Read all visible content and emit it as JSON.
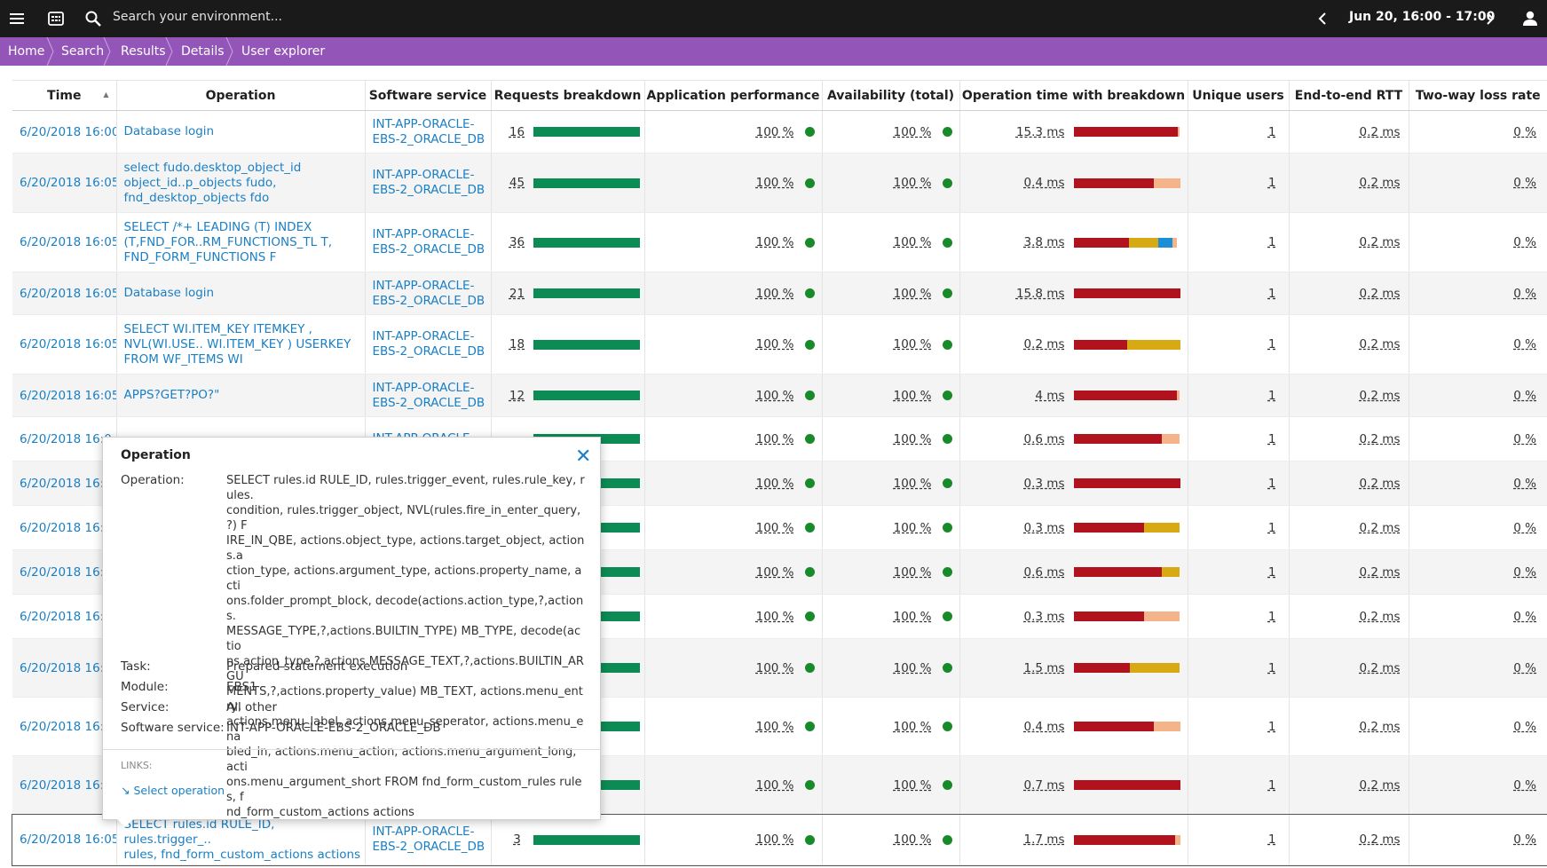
{
  "topbar": {
    "search_placeholder": "Search your environment...",
    "timeframe": "Jun 20, 16:00 - 17:00",
    "icons": [
      "menu-icon",
      "dashboard-icon",
      "search-icon",
      "chevron-left-icon",
      "chevron-right-icon",
      "user-icon"
    ]
  },
  "breadcrumbs": [
    "Home",
    "Search",
    "Results",
    "Details",
    "User explorer"
  ],
  "table": {
    "headers": {
      "time": "Time",
      "operation": "Operation",
      "software": "Software service",
      "requests": "Requests breakdown",
      "app_perf": "Application performance",
      "availability": "Availability (total)",
      "optime": "Operation time with breakdown",
      "users": "Unique users",
      "rtt": "End-to-end RTT",
      "loss": "Two-way loss rate"
    },
    "rows": [
      {
        "time": "6/20/2018 16:00",
        "op": [
          "Database login"
        ],
        "sw": [
          "INT-APP-ORACLE-",
          "EBS-2_ORACLE_DB"
        ],
        "req": "16",
        "perf": "100 %",
        "avail": "100 %",
        "optime": "15.3 ms",
        "breakdown": [
          {
            "color": "#b0131e",
            "frac": 0.98
          },
          {
            "color": "#f5b38a",
            "frac": 0.02
          }
        ],
        "users": "1",
        "rtt": "0.2 ms",
        "loss": "0 %"
      },
      {
        "time": "6/20/2018 16:05",
        "op": [
          "select fudo.desktop_object_id",
          "object_id..p_objects fudo,",
          "fnd_desktop_objects fdo"
        ],
        "sw": [
          "INT-APP-ORACLE-",
          "EBS-2_ORACLE_DB"
        ],
        "req": "45",
        "perf": "100 %",
        "avail": "100 %",
        "optime": "0.4 ms",
        "breakdown": [
          {
            "color": "#b0131e",
            "frac": 0.75
          },
          {
            "color": "#f5b38a",
            "frac": 0.25
          }
        ],
        "users": "1",
        "rtt": "0.2 ms",
        "loss": "0 %"
      },
      {
        "time": "6/20/2018 16:05",
        "op": [
          "SELECT /*+ LEADING (T) INDEX",
          "(T,FND_FOR..RM_FUNCTIONS_TL T,",
          "FND_FORM_FUNCTIONS F"
        ],
        "sw": [
          "INT-APP-ORACLE-",
          "EBS-2_ORACLE_DB"
        ],
        "req": "36",
        "perf": "100 %",
        "avail": "100 %",
        "optime": "3.8 ms",
        "breakdown": [
          {
            "color": "#b0131e",
            "frac": 0.52
          },
          {
            "color": "#d7a912",
            "frac": 0.28
          },
          {
            "color": "#1a8fd8",
            "frac": 0.13
          },
          {
            "color": "#f5b38a",
            "frac": 0.04
          }
        ],
        "users": "1",
        "rtt": "0.2 ms",
        "loss": "0 %"
      },
      {
        "time": "6/20/2018 16:05",
        "op": [
          "Database login"
        ],
        "sw": [
          "INT-APP-ORACLE-",
          "EBS-2_ORACLE_DB"
        ],
        "req": "21",
        "perf": "100 %",
        "avail": "100 %",
        "optime": "15.8 ms",
        "breakdown": [
          {
            "color": "#b0131e",
            "frac": 1.0
          }
        ],
        "users": "1",
        "rtt": "0.2 ms",
        "loss": "0 %"
      },
      {
        "time": "6/20/2018 16:05",
        "op": [
          "SELECT WI.ITEM_KEY ITEMKEY ,",
          "NVL(WI.USE.. WI.ITEM_KEY ) USERKEY",
          "FROM WF_ITEMS WI"
        ],
        "sw": [
          "INT-APP-ORACLE-",
          "EBS-2_ORACLE_DB"
        ],
        "req": "18",
        "perf": "100 %",
        "avail": "100 %",
        "optime": "0.2 ms",
        "breakdown": [
          {
            "color": "#b0131e",
            "frac": 0.5
          },
          {
            "color": "#d7a912",
            "frac": 0.5
          }
        ],
        "users": "1",
        "rtt": "0.2 ms",
        "loss": "0 %"
      },
      {
        "time": "6/20/2018 16:05",
        "op": [
          "APPS?GET?PO?\""
        ],
        "sw": [
          "INT-APP-ORACLE-",
          "EBS-2_ORACLE_DB"
        ],
        "req": "12",
        "perf": "100 %",
        "avail": "100 %",
        "optime": "4 ms",
        "breakdown": [
          {
            "color": "#b0131e",
            "frac": 0.97
          },
          {
            "color": "#f5b38a",
            "frac": 0.03
          }
        ],
        "users": "1",
        "rtt": "0.2 ms",
        "loss": "0 %"
      },
      {
        "time": "6/20/2018 16:0",
        "op": [
          ""
        ],
        "sw": [
          "INT-APP-ORACLE-"
        ],
        "req": "",
        "perf": "100 %",
        "avail": "100 %",
        "optime": "0.6 ms",
        "breakdown": [
          {
            "color": "#b0131e",
            "frac": 0.83
          },
          {
            "color": "#f5b38a",
            "frac": 0.17
          }
        ],
        "users": "1",
        "rtt": "0.2 ms",
        "loss": "0 %"
      },
      {
        "time": "6/20/2018 16:0",
        "op": [
          ""
        ],
        "sw": [
          ""
        ],
        "req": "",
        "perf": "100 %",
        "avail": "100 %",
        "optime": "0.3 ms",
        "breakdown": [
          {
            "color": "#b0131e",
            "frac": 1.0
          }
        ],
        "users": "1",
        "rtt": "0.2 ms",
        "loss": "0 %"
      },
      {
        "time": "6/20/2018 16:0",
        "op": [
          ""
        ],
        "sw": [
          ""
        ],
        "req": "",
        "perf": "100 %",
        "avail": "100 %",
        "optime": "0.3 ms",
        "breakdown": [
          {
            "color": "#b0131e",
            "frac": 0.66
          },
          {
            "color": "#d7a912",
            "frac": 0.34
          }
        ],
        "users": "1",
        "rtt": "0.2 ms",
        "loss": "0 %"
      },
      {
        "time": "6/20/2018 16:0",
        "op": [
          ""
        ],
        "sw": [
          ""
        ],
        "req": "",
        "perf": "100 %",
        "avail": "100 %",
        "optime": "0.6 ms",
        "breakdown": [
          {
            "color": "#b0131e",
            "frac": 0.83
          },
          {
            "color": "#d7a912",
            "frac": 0.17
          }
        ],
        "users": "1",
        "rtt": "0.2 ms",
        "loss": "0 %"
      },
      {
        "time": "6/20/2018 16:0",
        "op": [
          ""
        ],
        "sw": [
          ""
        ],
        "req": "",
        "perf": "100 %",
        "avail": "100 %",
        "optime": "0.3 ms",
        "breakdown": [
          {
            "color": "#b0131e",
            "frac": 0.66
          },
          {
            "color": "#f5b38a",
            "frac": 0.34
          }
        ],
        "users": "1",
        "rtt": "0.2 ms",
        "loss": "0 %"
      },
      {
        "time": "6/20/2018 16:0",
        "op": [
          ""
        ],
        "sw": [
          ""
        ],
        "req": "",
        "perf": "100 %",
        "avail": "100 %",
        "optime": "1.5 ms",
        "breakdown": [
          {
            "color": "#b0131e",
            "frac": 0.53
          },
          {
            "color": "#d7a912",
            "frac": 0.47
          }
        ],
        "users": "1",
        "rtt": "0.2 ms",
        "loss": "0 %"
      },
      {
        "time": "6/20/2018 16:0",
        "op": [
          ""
        ],
        "sw": [
          ""
        ],
        "req": "",
        "perf": "100 %",
        "avail": "100 %",
        "optime": "0.4 ms",
        "breakdown": [
          {
            "color": "#b0131e",
            "frac": 0.75
          },
          {
            "color": "#f5b38a",
            "frac": 0.25
          }
        ],
        "users": "1",
        "rtt": "0.2 ms",
        "loss": "0 %"
      },
      {
        "time": "6/20/2018 16:0",
        "op": [
          ""
        ],
        "sw": [
          ""
        ],
        "req": "",
        "perf": "100 %",
        "avail": "100 %",
        "optime": "0.7 ms",
        "breakdown": [
          {
            "color": "#b0131e",
            "frac": 1.0
          }
        ],
        "users": "1",
        "rtt": "0.2 ms",
        "loss": "0 %"
      },
      {
        "time": "6/20/2018 16:05",
        "op": [
          "SELECT rules.id RULE_ID, rules.trigger_..",
          "rules, fnd_form_custom_actions actions"
        ],
        "sw": [
          "INT-APP-ORACLE-",
          "EBS-2_ORACLE_DB"
        ],
        "req": "3",
        "perf": "100 %",
        "avail": "100 %",
        "optime": "1.7 ms",
        "breakdown": [
          {
            "color": "#b0131e",
            "frac": 0.95
          },
          {
            "color": "#f5b38a",
            "frac": 0.05
          }
        ],
        "users": "1",
        "rtt": "0.2 ms",
        "loss": "0 %"
      }
    ]
  },
  "popup": {
    "title": "Operation",
    "operation_label": "Operation:",
    "operation_lines": [
      "SELECT rules.id RULE_ID, rules.trigger_event, rules.rule_key, rules.",
      "condition, rules.trigger_object, NVL(rules.fire_in_enter_query, ?) F",
      "IRE_IN_QBE, actions.object_type, actions.target_object, actions.a",
      "ction_type, actions.argument_type, actions.property_name, acti",
      "ons.folder_prompt_block, decode(actions.action_type,?,actions.",
      "MESSAGE_TYPE,?,actions.BUILTIN_TYPE) MB_TYPE, decode(actio",
      "ns.action_type,?,actions.MESSAGE_TEXT,?,actions.BUILTIN_ARGU",
      "MENTS,?,actions.property_value) MB_TEXT, actions.menu_entry,",
      "actions.menu_label, actions.menu_seperator, actions.menu_ena",
      "bled_in, actions.menu_action, actions.menu_argument_long, acti",
      "ons.menu_argument_short FROM fnd_form_custom_rules rules, f",
      "nd_form_custom_actions actions"
    ],
    "task_label": "Task:",
    "task": "Prepared statement execution",
    "module_label": "Module:",
    "module": "EBS1",
    "service_label": "Service:",
    "service": "All other",
    "software_label": "Software service:",
    "software": "INT-APP-ORACLE-EBS-2_ORACLE_DB",
    "links_label": "LINKS:",
    "select_link": "Select operation"
  },
  "colors": {
    "topbar": "#1a1a1a",
    "breadcrumb": "#9355b7",
    "link": "#1a7fc4",
    "green": "#0d8b55",
    "red": "#b0131e"
  }
}
